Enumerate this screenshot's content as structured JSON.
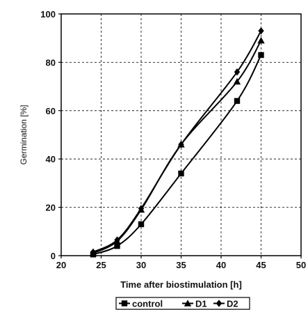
{
  "chart_data": {
    "type": "line",
    "xlabel": "Time after biostimulation [h]",
    "ylabel": "Germination [%]",
    "xlim": [
      20,
      50
    ],
    "ylim": [
      0,
      100
    ],
    "xticks": [
      20,
      25,
      30,
      35,
      40,
      45,
      50
    ],
    "yticks": [
      0,
      20,
      40,
      60,
      80,
      100
    ],
    "grid": true,
    "legend_position": "bottom",
    "series": [
      {
        "name": "control",
        "marker": "square",
        "x": [
          24,
          27,
          30,
          35,
          42,
          45
        ],
        "y": [
          0.5,
          4,
          13,
          34,
          64,
          83
        ]
      },
      {
        "name": "D1",
        "marker": "triangle",
        "x": [
          24,
          27,
          30,
          35,
          42,
          45
        ],
        "y": [
          1,
          6,
          19,
          46,
          72,
          89
        ]
      },
      {
        "name": "D2",
        "marker": "diamond",
        "x": [
          24,
          27,
          30,
          35,
          42,
          45
        ],
        "y": [
          1.5,
          6.5,
          19.5,
          46,
          76,
          93
        ]
      }
    ]
  }
}
